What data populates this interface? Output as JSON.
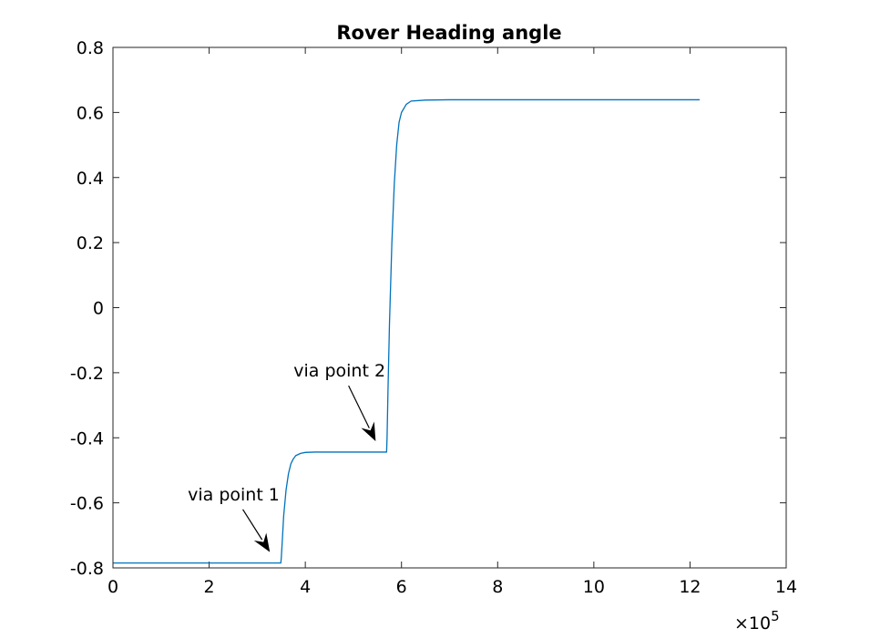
{
  "chart_data": {
    "type": "line",
    "title": "Rover Heading angle",
    "xlabel": "",
    "ylabel": "",
    "xlim": [
      0,
      1400000
    ],
    "ylim": [
      -0.8,
      0.8
    ],
    "x_ticks": [
      0,
      200000,
      400000,
      600000,
      800000,
      1000000,
      1200000,
      1400000
    ],
    "x_tick_labels": [
      "0",
      "2",
      "4",
      "6",
      "8",
      "10",
      "12",
      "14"
    ],
    "x_exponent_label": "×10",
    "x_exponent_power": "5",
    "y_ticks": [
      -0.8,
      -0.6,
      -0.4,
      -0.2,
      0,
      0.2,
      0.4,
      0.6,
      0.8
    ],
    "y_tick_labels": [
      "-0.8",
      "-0.6",
      "-0.4",
      "-0.2",
      "0",
      "0.2",
      "0.4",
      "0.6",
      "0.8"
    ],
    "grid": false,
    "series": [
      {
        "color": "#0072bd",
        "x": [
          0,
          100000,
          200000,
          300000,
          349000,
          350000,
          352000,
          355000,
          360000,
          365000,
          370000,
          375000,
          380000,
          390000,
          400000,
          420000,
          450000,
          500000,
          550000,
          569000,
          570000,
          572000,
          575000,
          580000,
          585000,
          590000,
          595000,
          600000,
          610000,
          620000,
          650000,
          700000,
          800000,
          900000,
          1000000,
          1100000,
          1220000
        ],
        "y": [
          -0.785,
          -0.785,
          -0.785,
          -0.785,
          -0.785,
          -0.77,
          -0.72,
          -0.64,
          -0.56,
          -0.51,
          -0.48,
          -0.465,
          -0.455,
          -0.448,
          -0.445,
          -0.444,
          -0.444,
          -0.444,
          -0.444,
          -0.444,
          -0.4,
          -0.25,
          -0.05,
          0.2,
          0.38,
          0.5,
          0.57,
          0.6,
          0.625,
          0.635,
          0.638,
          0.639,
          0.639,
          0.639,
          0.639,
          0.639,
          0.639
        ]
      }
    ],
    "annotations": [
      {
        "text": "via point 1",
        "arrow_tip": [
          349000,
          -0.785
        ],
        "arrow_tail": [
          270000,
          -0.62
        ]
      },
      {
        "text": "via point 2",
        "arrow_tip": [
          569000,
          -0.444
        ],
        "arrow_tail": [
          490000,
          -0.24
        ]
      }
    ]
  }
}
